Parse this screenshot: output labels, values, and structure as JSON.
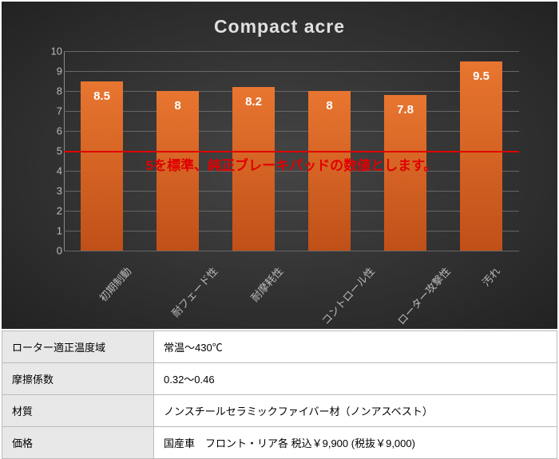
{
  "chart": {
    "title": "Compact  acre",
    "type": "bar",
    "background": "radial-gradient #454545 to #222222",
    "categories": [
      "初期制動",
      "耐フェード性",
      "耐摩耗性",
      "コントロール性",
      "ローター攻撃性",
      "汚れ"
    ],
    "values": [
      8.5,
      8,
      8.2,
      8,
      7.8,
      9.5
    ],
    "value_labels": [
      "8.5",
      "8",
      "8.2",
      "8",
      "7.8",
      "9.5"
    ],
    "bar_color_top": "#e87630",
    "bar_color_bottom": "#c05018",
    "bar_width_ratio": 0.55,
    "ylim": [
      0,
      10
    ],
    "ytick_step": 1,
    "y_ticks": [
      "0",
      "1",
      "2",
      "3",
      "4",
      "5",
      "6",
      "7",
      "8",
      "9",
      "10"
    ],
    "tick_color": "#bbbbbb",
    "grid_color": "#666666",
    "title_color": "#e0e0e0",
    "title_fontsize": 23,
    "label_fontsize": 13,
    "value_label_color": "#ffffff",
    "value_label_fontsize": 15,
    "reference_line": {
      "value": 5,
      "color": "#e00000",
      "text": "5を標準、純正ブレーキパッドの数値とします。"
    },
    "x_label_rotation_deg": -48
  },
  "spec": {
    "rows": [
      {
        "key": "ローター適正温度域",
        "value": "常温～430℃"
      },
      {
        "key": "摩擦係数",
        "value": "0.32～0.46"
      },
      {
        "key": "材質",
        "value": "ノンスチールセラミックファイバー材（ノンアスベスト）"
      },
      {
        "key": "価格",
        "value": "国産車　フロント・リア各 税込￥9,900 (税抜￥9,000)"
      }
    ]
  }
}
